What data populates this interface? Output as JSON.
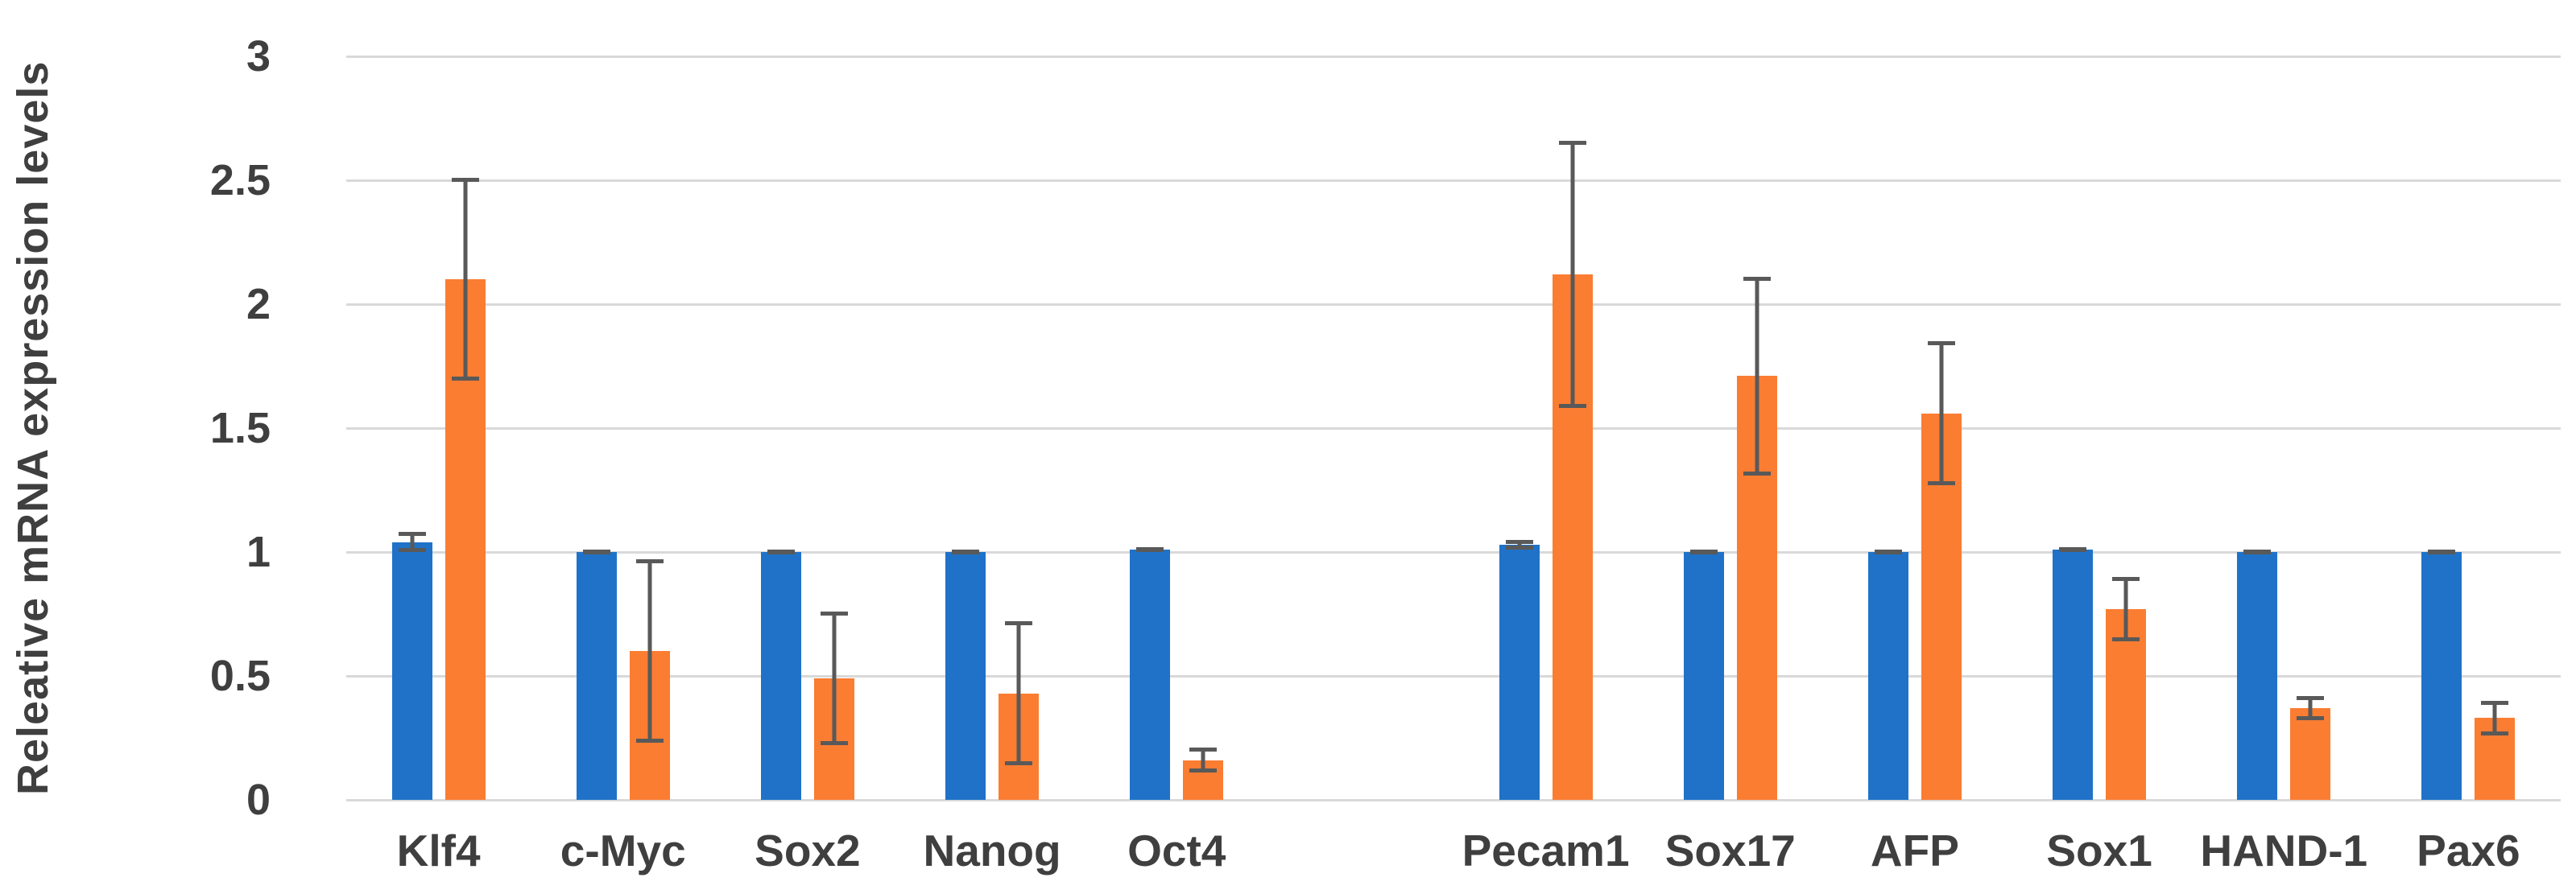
{
  "chart_data": {
    "type": "bar",
    "title": "",
    "xlabel": "",
    "ylabel": "Releative mRNA expression levels",
    "ylim": [
      0,
      3
    ],
    "ytick_labels": [
      "0",
      "0.5",
      "1",
      "1.5",
      "2",
      "2.5",
      "3"
    ],
    "grid": true,
    "legend_position": "none",
    "categories": [
      "Klf4",
      "c-Myc",
      "Sox2",
      "Nanog",
      "Oct4",
      "Pecam1",
      "Sox17",
      "AFP",
      "Sox1",
      "HAND-1",
      "Pax6"
    ],
    "gap_after_index": 4,
    "series": [
      {
        "name": "series-blue",
        "color": "#1f72c8",
        "values": [
          1.04,
          1.0,
          1.0,
          1.0,
          1.01,
          1.03,
          1.0,
          1.0,
          1.01,
          1.0,
          1.0
        ],
        "errors": [
          0.04,
          0.01,
          0.01,
          0.01,
          0.01,
          0.02,
          0.01,
          0.01,
          0.01,
          0.01,
          0.01
        ]
      },
      {
        "name": "series-orange",
        "color": "#fa7d32",
        "values": [
          2.1,
          0.6,
          0.49,
          0.43,
          0.16,
          2.12,
          1.71,
          1.56,
          0.77,
          0.37,
          0.33
        ],
        "errors": [
          0.41,
          0.37,
          0.27,
          0.29,
          0.05,
          0.54,
          0.4,
          0.29,
          0.13,
          0.05,
          0.07
        ]
      }
    ],
    "style_colors": {
      "gridline": "#d9d9d9",
      "error_bar": "#595959",
      "text": "#3f3f3f"
    }
  }
}
